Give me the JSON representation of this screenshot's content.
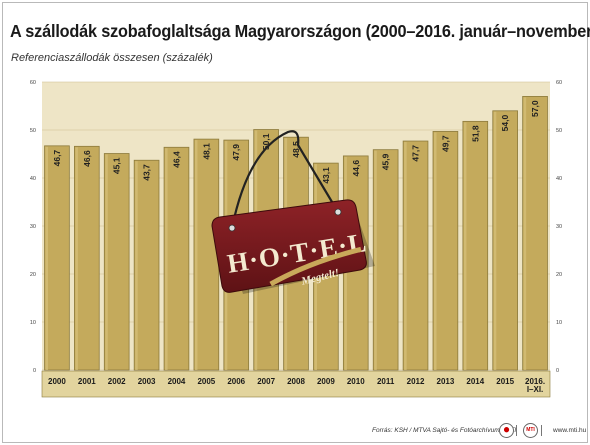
{
  "title": "A szállodák szobafoglaltsága Magyarországon (2000–2016. január–november)",
  "subtitle": "Referenciaszállodák összesen (százalék)",
  "source": "Forrás: KSH / MTVA Sajtó- és Fotóarchívum / MTI",
  "site": "www.mti.hu",
  "sign": {
    "text": "H·O·T·E·L",
    "subtext": "Megtelt!"
  },
  "colors": {
    "bar": "#c4aa5c",
    "bar_edge": "#8c7a3c",
    "plot_bg": "#eee5c6",
    "sign": "#7a1a1e",
    "axis_bar": "#e2d49e"
  },
  "chart_data": {
    "type": "bar",
    "title": "A szállodák szobafoglaltsága Magyarországon (2000–2016. január–november)",
    "subtitle": "Referenciaszállodák összesen (százalék)",
    "categories": [
      "2000",
      "2001",
      "2002",
      "2003",
      "2004",
      "2005",
      "2006",
      "2007",
      "2008",
      "2009",
      "2010",
      "2011",
      "2012",
      "2013",
      "2014",
      "2015",
      "2016.\nI–XI."
    ],
    "values": [
      46.7,
      46.6,
      45.1,
      43.7,
      46.4,
      48.1,
      47.9,
      50.1,
      48.5,
      43.1,
      44.6,
      45.9,
      47.7,
      49.7,
      51.8,
      54.0,
      57.0
    ],
    "value_labels": [
      "46,7",
      "46,6",
      "45,1",
      "43,7",
      "46,4",
      "48,1",
      "47,9",
      "50,1",
      "48,5",
      "43,1",
      "44,6",
      "45,9",
      "47,7",
      "49,7",
      "51,8",
      "54,0",
      "57,0"
    ],
    "ylim": [
      0,
      60
    ],
    "yticks": [
      "0",
      "10",
      "20",
      "30",
      "40",
      "50",
      "60"
    ],
    "grid": true,
    "legend": "none"
  }
}
